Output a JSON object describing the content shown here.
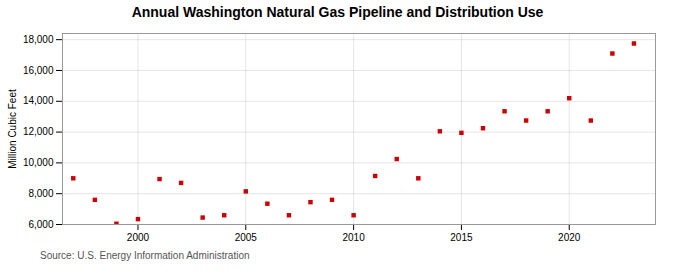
{
  "chart_data": {
    "type": "scatter",
    "title": "Annual Washington Natural Gas Pipeline and Distribution Use",
    "ylabel": "Million Cubic Feet",
    "source": "Source: U.S. Energy Information Administration",
    "color": "#cc0000",
    "marker": "square",
    "grid": true,
    "x": [
      1997,
      1998,
      1999,
      2000,
      2001,
      2002,
      2003,
      2004,
      2005,
      2006,
      2007,
      2008,
      2009,
      2010,
      2011,
      2012,
      2013,
      2014,
      2015,
      2016,
      2017,
      2018,
      2019,
      2020,
      2021,
      2022,
      2023
    ],
    "values": [
      9000,
      7600,
      6050,
      6350,
      8950,
      8700,
      6450,
      6600,
      8150,
      7350,
      6600,
      7450,
      7600,
      6600,
      9150,
      10250,
      9000,
      12050,
      11950,
      12250,
      13350,
      12750,
      13350,
      14200,
      12750,
      17100,
      17750
    ],
    "xlim": [
      1996.5,
      2024.0
    ],
    "xticks": [
      2000,
      2005,
      2010,
      2015,
      2020
    ],
    "ylim": [
      6000,
      18400
    ],
    "yticks": [
      {
        "value": 6000,
        "label": "6,000"
      },
      {
        "value": 8000,
        "label": "8,000"
      },
      {
        "value": 10000,
        "label": "10,000"
      },
      {
        "value": 12000,
        "label": "12,000"
      },
      {
        "value": 14000,
        "label": "14,000"
      },
      {
        "value": 16000,
        "label": "16,000"
      },
      {
        "value": 18000,
        "label": "18,000"
      }
    ]
  }
}
